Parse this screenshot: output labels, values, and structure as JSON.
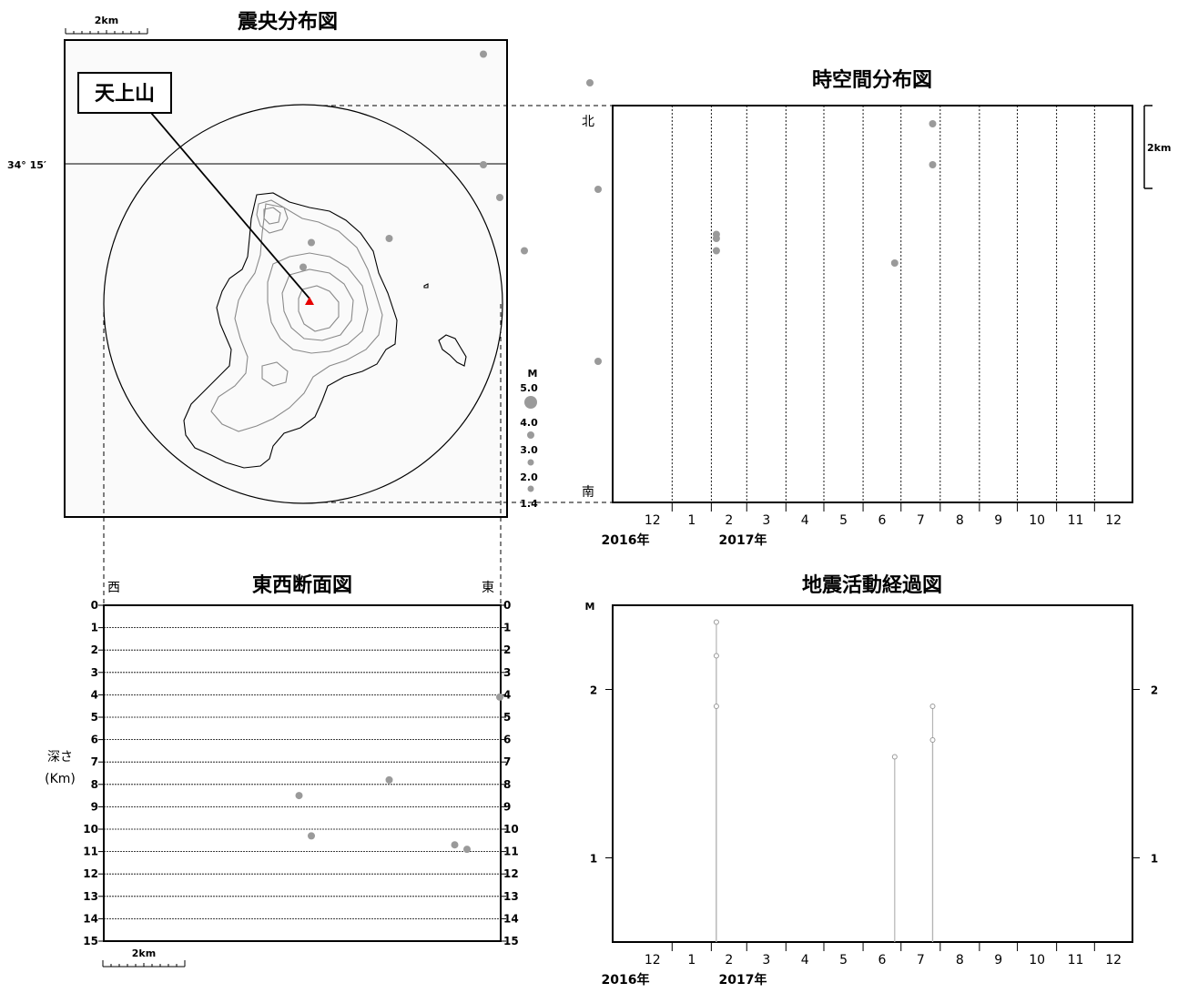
{
  "titles": {
    "epicenter": "震央分布図",
    "space_time": "時空間分布図",
    "ew_section": "東西断面図",
    "activity": "地震活動経過図"
  },
  "map": {
    "volcano_label": "天上山",
    "lat_label": "34° 15′",
    "scale_label": "2km",
    "volcano_color": "#e60000"
  },
  "magnitude_legend": {
    "title": "M",
    "labels": [
      "5.0",
      "4.0",
      "3.0",
      "2.0",
      "1.4"
    ]
  },
  "space_time": {
    "north_label": "北",
    "south_label": "南",
    "scale_label": "2km",
    "month_labels": [
      "12",
      "1",
      "2",
      "3",
      "4",
      "5",
      "6",
      "7",
      "8",
      "9",
      "10",
      "11",
      "12"
    ],
    "year_labels": [
      "2016年",
      "2017年"
    ]
  },
  "ew_section": {
    "west_label": "西",
    "east_label": "東",
    "depth_label": "深さ",
    "depth_unit": "(Km)",
    "scale_label": "2km",
    "depth_ticks": [
      "0",
      "1",
      "2",
      "3",
      "4",
      "5",
      "6",
      "7",
      "8",
      "9",
      "10",
      "11",
      "12",
      "13",
      "14",
      "15"
    ]
  },
  "activity": {
    "y_title": "M",
    "y_ticks": [
      "1",
      "2"
    ],
    "month_labels": [
      "12",
      "1",
      "2",
      "3",
      "4",
      "5",
      "6",
      "7",
      "8",
      "9",
      "10",
      "11",
      "12"
    ],
    "year_labels": [
      "2016年",
      "2017年"
    ]
  },
  "colors": {
    "point": "#9a9a9a",
    "island_contour": "#8a8a8a"
  },
  "chart_data": [
    {
      "type": "scatter",
      "title": "震央分布図",
      "x_unit": "km east of 天上山",
      "y_unit": "km north of 天上山",
      "points": [
        {
          "x": 4.4,
          "y": 6.1,
          "m": 1.6
        },
        {
          "x": 7.0,
          "y": 5.4,
          "m": 1.6
        },
        {
          "x": 4.4,
          "y": 3.4,
          "m": 1.6
        },
        {
          "x": 4.8,
          "y": 2.6,
          "m": 1.6
        },
        {
          "x": 7.2,
          "y": 2.8,
          "m": 1.6
        },
        {
          "x": 0.2,
          "y": 1.5,
          "m": 1.6
        },
        {
          "x": 2.1,
          "y": 1.6,
          "m": 1.6
        },
        {
          "x": 5.4,
          "y": 1.3,
          "m": 1.6
        },
        {
          "x": 0.0,
          "y": 0.9,
          "m": 1.6
        },
        {
          "x": 7.2,
          "y": -1.4,
          "m": 1.6
        }
      ]
    },
    {
      "type": "scatter",
      "title": "時空間分布図",
      "x": [
        "2017-02-05",
        "2017-02-05",
        "2017-02-05",
        "2017-06-26",
        "2017-07-26",
        "2017-07-26"
      ],
      "y_unit": "km north of 天上山",
      "y": [
        1.7,
        1.6,
        1.3,
        1.0,
        4.4,
        3.4
      ]
    },
    {
      "type": "scatter",
      "title": "東西断面図",
      "x_unit": "km east of 天上山",
      "ylabel": "深さ(Km)",
      "ylim": [
        15,
        0
      ],
      "points": [
        {
          "x": 4.8,
          "depth": 4.1
        },
        {
          "x": 2.1,
          "depth": 7.8
        },
        {
          "x": -0.1,
          "depth": 8.5
        },
        {
          "x": 0.2,
          "depth": 10.3
        },
        {
          "x": 3.7,
          "depth": 10.7
        },
        {
          "x": 4.0,
          "depth": 10.9
        }
      ]
    },
    {
      "type": "stem",
      "title": "地震活動経過図",
      "ylabel": "M",
      "ylim": [
        0.5,
        2.5
      ],
      "x": [
        "2017-02-05",
        "2017-02-05",
        "2017-02-05",
        "2017-06-26",
        "2017-07-26",
        "2017-07-26"
      ],
      "y": [
        2.4,
        2.2,
        1.9,
        1.6,
        1.9,
        1.7
      ]
    }
  ]
}
